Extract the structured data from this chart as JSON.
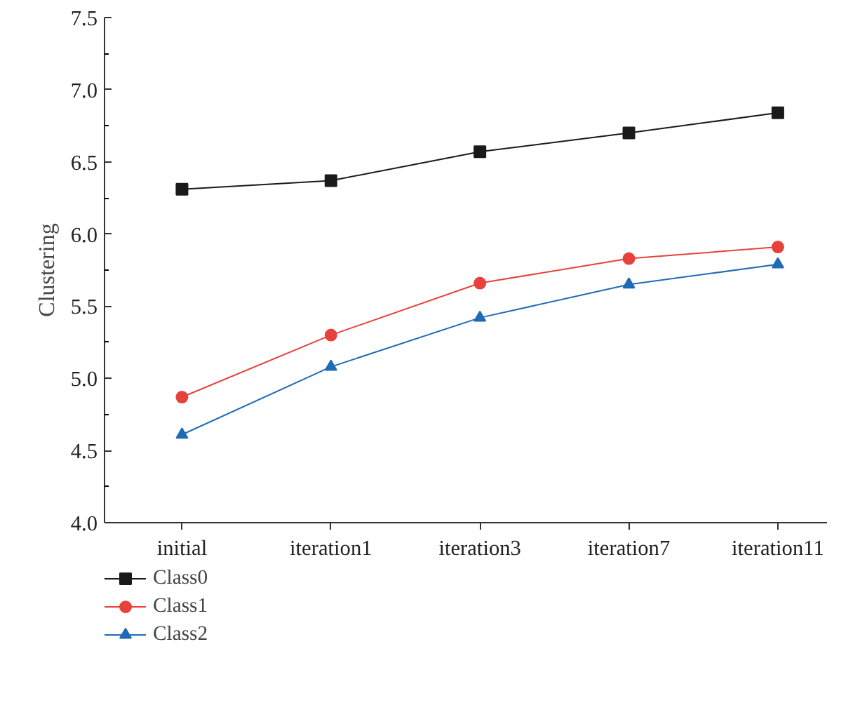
{
  "chart_data": {
    "type": "line",
    "ylabel": "Clustering",
    "categories": [
      "initial",
      "iteration1",
      "iteration3",
      "iteration7",
      "iteration11"
    ],
    "ylim": [
      4.0,
      7.5
    ],
    "yticks": [
      {
        "value": 4.0,
        "label": "4.0"
      },
      {
        "value": 4.5,
        "label": "4.5"
      },
      {
        "value": 5.0,
        "label": "5.0"
      },
      {
        "value": 5.5,
        "label": "5.5"
      },
      {
        "value": 6.0,
        "label": "6.0"
      },
      {
        "value": 6.5,
        "label": "6.5"
      },
      {
        "value": 7.0,
        "label": "7.0"
      },
      {
        "value": 7.5,
        "label": "7.5"
      }
    ],
    "grid": false,
    "legend": "bottom left",
    "line_style": "solid",
    "series": [
      {
        "name": "Class0",
        "color": "#1a1a1a",
        "marker": "square",
        "values": [
          6.31,
          6.37,
          6.57,
          6.7,
          6.84
        ]
      },
      {
        "name": "Class1",
        "color": "#e8413c",
        "marker": "circle",
        "values": [
          4.87,
          5.3,
          5.66,
          5.83,
          5.91
        ]
      },
      {
        "name": "Class2",
        "color": "#1f6bb5",
        "marker": "triangle",
        "values": [
          4.61,
          5.08,
          5.42,
          5.65,
          5.79
        ]
      }
    ]
  }
}
